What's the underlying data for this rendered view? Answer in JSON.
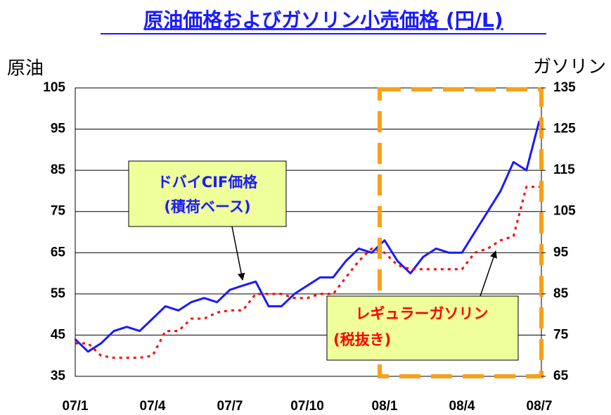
{
  "chart_data": {
    "type": "line",
    "title": "原油価格およびガソリン小売価格 (円/L)",
    "y_label": "原油",
    "y2_label": "ガソリン",
    "categories": [
      "07/1",
      null,
      null,
      null,
      null,
      null,
      "07/4",
      null,
      null,
      null,
      null,
      null,
      "07/7",
      null,
      null,
      null,
      null,
      null,
      "07/10",
      null,
      null,
      null,
      null,
      null,
      "08/1",
      null,
      null,
      null,
      null,
      null,
      "08/4",
      null,
      null,
      null,
      null,
      null,
      "08/7"
    ],
    "series": [
      {
        "name": "ドバイCIF価格 (積荷ベース)",
        "color": "#1a1aff",
        "axis": "y",
        "values": [
          44,
          41,
          43,
          46,
          47,
          46,
          49,
          52,
          51,
          53,
          54,
          53,
          56,
          57,
          58,
          52,
          52,
          55,
          57,
          59,
          59,
          63,
          66,
          65,
          68,
          63,
          60,
          64,
          66,
          65,
          65,
          70,
          75,
          80,
          87,
          85,
          97
        ]
      },
      {
        "name": "レギュラーガソリン (税抜き)",
        "color": "#ff0000",
        "axis": "y2",
        "values": [
          73,
          73,
          70,
          69.5,
          69.5,
          69.5,
          70,
          76,
          76,
          79,
          79,
          80.5,
          81,
          81,
          85,
          85,
          85,
          84,
          84,
          85,
          85,
          89,
          93,
          96,
          95,
          92,
          91,
          91,
          91,
          91,
          91,
          95,
          96,
          98,
          99,
          111,
          111
        ]
      }
    ],
    "ylim": [
      35,
      105
    ],
    "yticks": [
      35,
      45,
      55,
      65,
      75,
      85,
      95,
      105
    ],
    "y2lim": [
      65,
      135
    ],
    "y2ticks": [
      65,
      75,
      85,
      95,
      105,
      115,
      125,
      135
    ],
    "grid": true,
    "annotations": [
      {
        "text": [
          "ドバイCIF価格",
          "(積荷ベース)"
        ]
      },
      {
        "text": [
          "レギュラーガソリン",
          "(税抜き)"
        ]
      }
    ]
  }
}
